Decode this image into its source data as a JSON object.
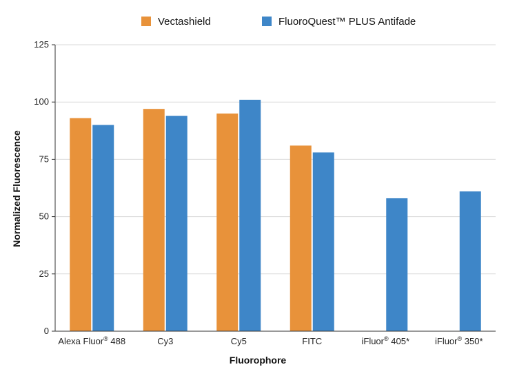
{
  "chart_data": {
    "type": "bar",
    "title": "",
    "xlabel": "Fluorophore",
    "ylabel": "Normalized Fluorescence",
    "ylim": [
      0,
      125
    ],
    "yticks": [
      0,
      25,
      50,
      75,
      100,
      125
    ],
    "grid": true,
    "legend_position": "top-center",
    "categories": [
      {
        "base": "Alexa Fluor",
        "sup": "®",
        "rest": " 488"
      },
      {
        "base": "Cy3",
        "sup": "",
        "rest": ""
      },
      {
        "base": "Cy5",
        "sup": "",
        "rest": ""
      },
      {
        "base": "FITC",
        "sup": "",
        "rest": ""
      },
      {
        "base": "iFluor",
        "sup": "®",
        "rest": " 405*"
      },
      {
        "base": "iFluor",
        "sup": "®",
        "rest": " 350*"
      }
    ],
    "series": [
      {
        "name": "Vectashield",
        "color": "#E8923A",
        "values": [
          93,
          97,
          95,
          81,
          null,
          null
        ]
      },
      {
        "name": "FluoroQuest™ PLUS Antifade",
        "color": "#3E86C8",
        "values": [
          90,
          94,
          101,
          78,
          58,
          61
        ]
      }
    ]
  }
}
